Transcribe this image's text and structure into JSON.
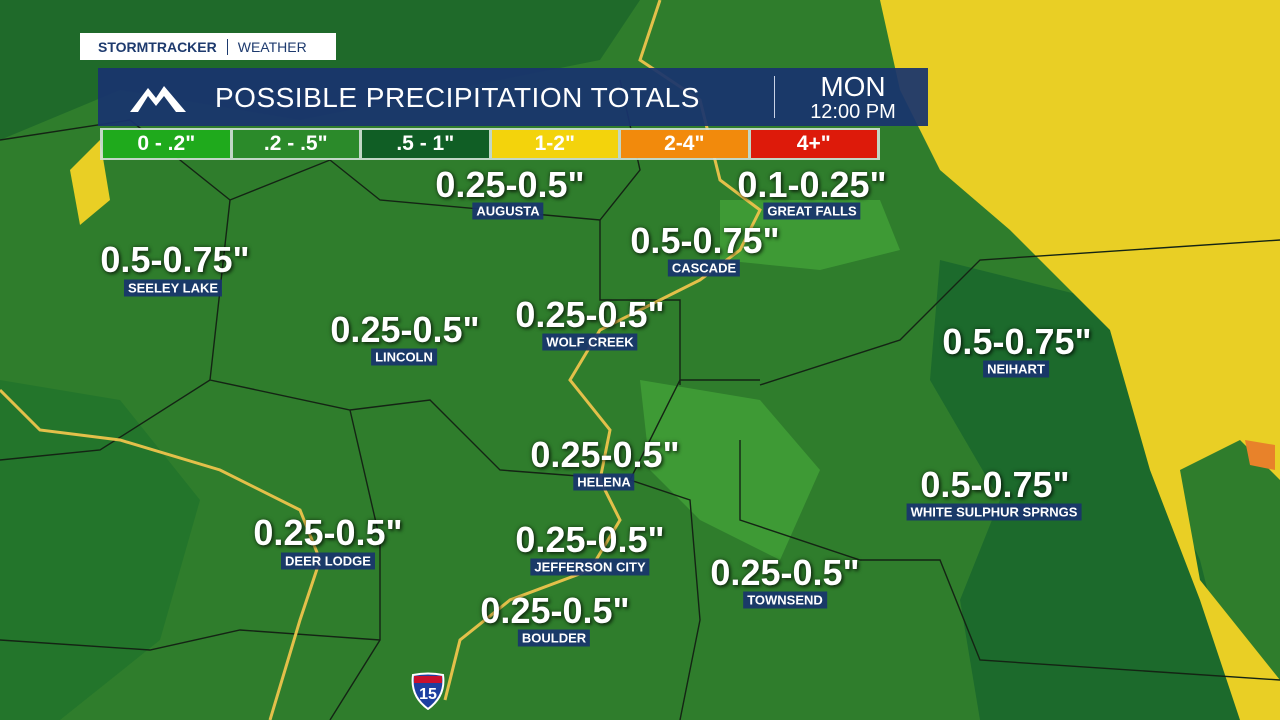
{
  "brand": {
    "name": "STORMTRACKER",
    "section": "WEATHER"
  },
  "header": {
    "title": "POSSIBLE PRECIPITATION TOTALS",
    "day": "MON",
    "time": "12:00 PM"
  },
  "legend": [
    {
      "label": "0 - .2\"",
      "color": "#1faa1c"
    },
    {
      "label": ".2 - .5\"",
      "color": "#2b8a2a"
    },
    {
      "label": ".5 - 1\"",
      "color": "#105e25"
    },
    {
      "label": "1-2\"",
      "color": "#f3d30c"
    },
    {
      "label": "2-4\"",
      "color": "#f28a0c"
    },
    {
      "label": "4+\"",
      "color": "#dd1a0a"
    }
  ],
  "locations": [
    {
      "name": "AUGUSTA",
      "amount": "0.25-0.5\""
    },
    {
      "name": "GREAT FALLS",
      "amount": "0.1-0.25\""
    },
    {
      "name": "CASCADE",
      "amount": "0.5-0.75\""
    },
    {
      "name": "SEELEY LAKE",
      "amount": "0.5-0.75\""
    },
    {
      "name": "LINCOLN",
      "amount": "0.25-0.5\""
    },
    {
      "name": "WOLF CREEK",
      "amount": "0.25-0.5\""
    },
    {
      "name": "NEIHART",
      "amount": "0.5-0.75\""
    },
    {
      "name": "HELENA",
      "amount": "0.25-0.5\""
    },
    {
      "name": "WHITE SULPHUR SPRNGS",
      "amount": "0.5-0.75\""
    },
    {
      "name": "DEER LODGE",
      "amount": "0.25-0.5\""
    },
    {
      "name": "JEFFERSON CITY",
      "amount": "0.25-0.5\""
    },
    {
      "name": "TOWNSEND",
      "amount": "0.25-0.5\""
    },
    {
      "name": "BOULDER",
      "amount": "0.25-0.5\""
    }
  ],
  "highway": "15"
}
